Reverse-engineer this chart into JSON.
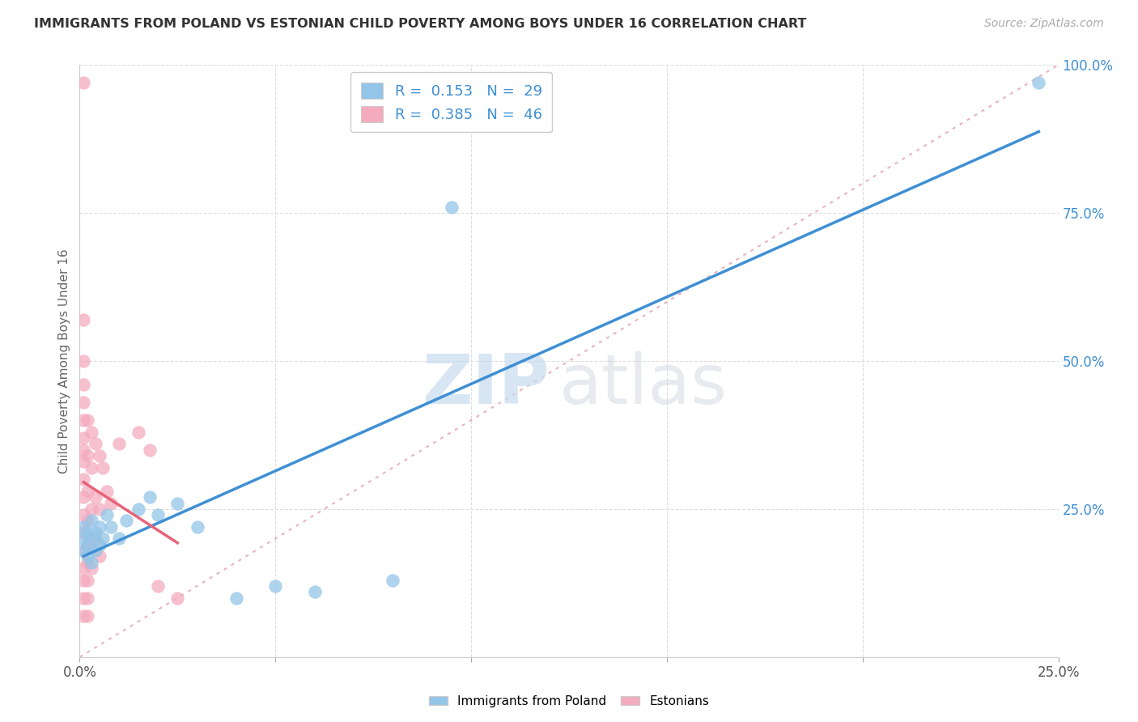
{
  "title": "IMMIGRANTS FROM POLAND VS ESTONIAN CHILD POVERTY AMONG BOYS UNDER 16 CORRELATION CHART",
  "source": "Source: ZipAtlas.com",
  "ylabel": "Child Poverty Among Boys Under 16",
  "legend_blue_label": "Immigrants from Poland",
  "legend_pink_label": "Estonians",
  "R_blue": 0.153,
  "N_blue": 29,
  "R_pink": 0.385,
  "N_pink": 46,
  "blue_color": "#92C5E8",
  "pink_color": "#F4ABBE",
  "trend_blue_color": "#3E8FD4",
  "trend_pink_color": "#E8637A",
  "diag_color": "#E8B4BC",
  "watermark_zip": "ZIP",
  "watermark_atlas": "atlas",
  "xlim": [
    0.0,
    0.25
  ],
  "ylim": [
    0.0,
    1.0
  ],
  "blue_scatter": [
    [
      0.001,
      0.18
    ],
    [
      0.001,
      0.2
    ],
    [
      0.001,
      0.22
    ],
    [
      0.002,
      0.17
    ],
    [
      0.002,
      0.19
    ],
    [
      0.002,
      0.21
    ],
    [
      0.003,
      0.16
    ],
    [
      0.003,
      0.2
    ],
    [
      0.003,
      0.23
    ],
    [
      0.004,
      0.18
    ],
    [
      0.004,
      0.21
    ],
    [
      0.005,
      0.19
    ],
    [
      0.005,
      0.22
    ],
    [
      0.006,
      0.2
    ],
    [
      0.007,
      0.24
    ],
    [
      0.008,
      0.22
    ],
    [
      0.01,
      0.2
    ],
    [
      0.012,
      0.23
    ],
    [
      0.015,
      0.25
    ],
    [
      0.018,
      0.27
    ],
    [
      0.02,
      0.24
    ],
    [
      0.025,
      0.26
    ],
    [
      0.03,
      0.22
    ],
    [
      0.04,
      0.1
    ],
    [
      0.05,
      0.12
    ],
    [
      0.06,
      0.11
    ],
    [
      0.08,
      0.13
    ],
    [
      0.095,
      0.76
    ],
    [
      0.245,
      0.97
    ]
  ],
  "pink_scatter": [
    [
      0.001,
      0.97
    ],
    [
      0.001,
      0.57
    ],
    [
      0.001,
      0.5
    ],
    [
      0.001,
      0.46
    ],
    [
      0.001,
      0.43
    ],
    [
      0.001,
      0.4
    ],
    [
      0.001,
      0.37
    ],
    [
      0.001,
      0.35
    ],
    [
      0.001,
      0.33
    ],
    [
      0.001,
      0.3
    ],
    [
      0.001,
      0.27
    ],
    [
      0.001,
      0.24
    ],
    [
      0.001,
      0.21
    ],
    [
      0.001,
      0.18
    ],
    [
      0.001,
      0.15
    ],
    [
      0.001,
      0.13
    ],
    [
      0.001,
      0.1
    ],
    [
      0.001,
      0.07
    ],
    [
      0.002,
      0.4
    ],
    [
      0.002,
      0.34
    ],
    [
      0.002,
      0.28
    ],
    [
      0.002,
      0.23
    ],
    [
      0.002,
      0.19
    ],
    [
      0.002,
      0.16
    ],
    [
      0.002,
      0.13
    ],
    [
      0.002,
      0.1
    ],
    [
      0.002,
      0.07
    ],
    [
      0.003,
      0.38
    ],
    [
      0.003,
      0.32
    ],
    [
      0.003,
      0.25
    ],
    [
      0.003,
      0.19
    ],
    [
      0.003,
      0.15
    ],
    [
      0.004,
      0.36
    ],
    [
      0.004,
      0.27
    ],
    [
      0.004,
      0.2
    ],
    [
      0.005,
      0.34
    ],
    [
      0.005,
      0.25
    ],
    [
      0.005,
      0.17
    ],
    [
      0.006,
      0.32
    ],
    [
      0.007,
      0.28
    ],
    [
      0.008,
      0.26
    ],
    [
      0.01,
      0.36
    ],
    [
      0.015,
      0.38
    ],
    [
      0.018,
      0.35
    ],
    [
      0.02,
      0.12
    ],
    [
      0.025,
      0.1
    ]
  ]
}
